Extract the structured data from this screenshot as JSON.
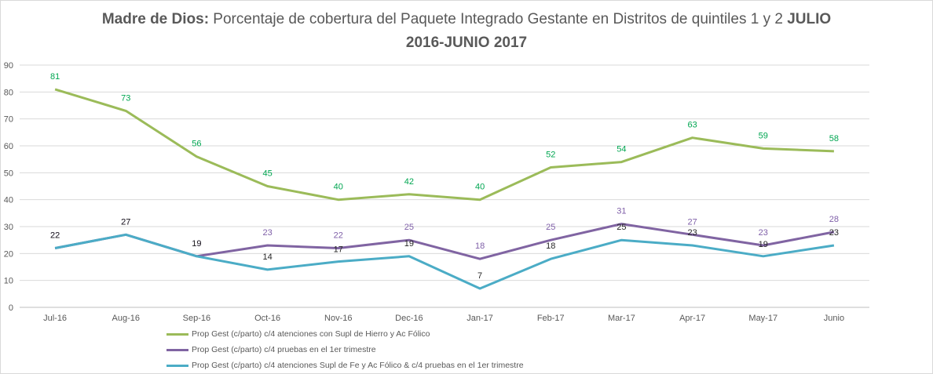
{
  "title": {
    "part1": "Madre de Dios:",
    "part2": " Porcentaje de cobertura del Paquete Integrado Gestante en Distritos de quintiles 1 y 2 ",
    "part3": "JULIO",
    "line2": "2016-JUNIO 2017"
  },
  "chart_data": {
    "type": "line",
    "categories": [
      "Jul-16",
      "Aug-16",
      "Sep-16",
      "Oct-16",
      "Nov-16",
      "Dec-16",
      "Jan-17",
      "Feb-17",
      "Mar-17",
      "Apr-17",
      "May-17",
      "Junio"
    ],
    "ylim": [
      0,
      90
    ],
    "yticks": [
      0,
      10,
      20,
      30,
      40,
      50,
      60,
      70,
      80,
      90
    ],
    "grid": true,
    "legend_position": "bottom",
    "series": [
      {
        "name": "Prop Gest (c/parto) c/4 atenciones con Supl de Hierro y Ac Fólico",
        "color": "#9bbb59",
        "label_color": "#00a651",
        "values": [
          81,
          73,
          56,
          45,
          40,
          42,
          40,
          52,
          54,
          63,
          59,
          58
        ]
      },
      {
        "name": "Prop Gest (c/parto) c/4 pruebas en el 1er trimestre",
        "color": "#8064a2",
        "label_color": "#7f5fa8",
        "values": [
          22,
          27,
          19,
          23,
          22,
          25,
          18,
          25,
          31,
          27,
          23,
          28
        ]
      },
      {
        "name": "Prop Gest (c/parto) c/4 atenciones Supl de Fe y Ac Fólico & c/4 pruebas en el 1er trimestre",
        "color": "#4bacc6",
        "label_color": "#262626",
        "values": [
          22,
          27,
          19,
          14,
          17,
          19,
          7,
          18,
          25,
          23,
          19,
          23
        ]
      }
    ]
  }
}
